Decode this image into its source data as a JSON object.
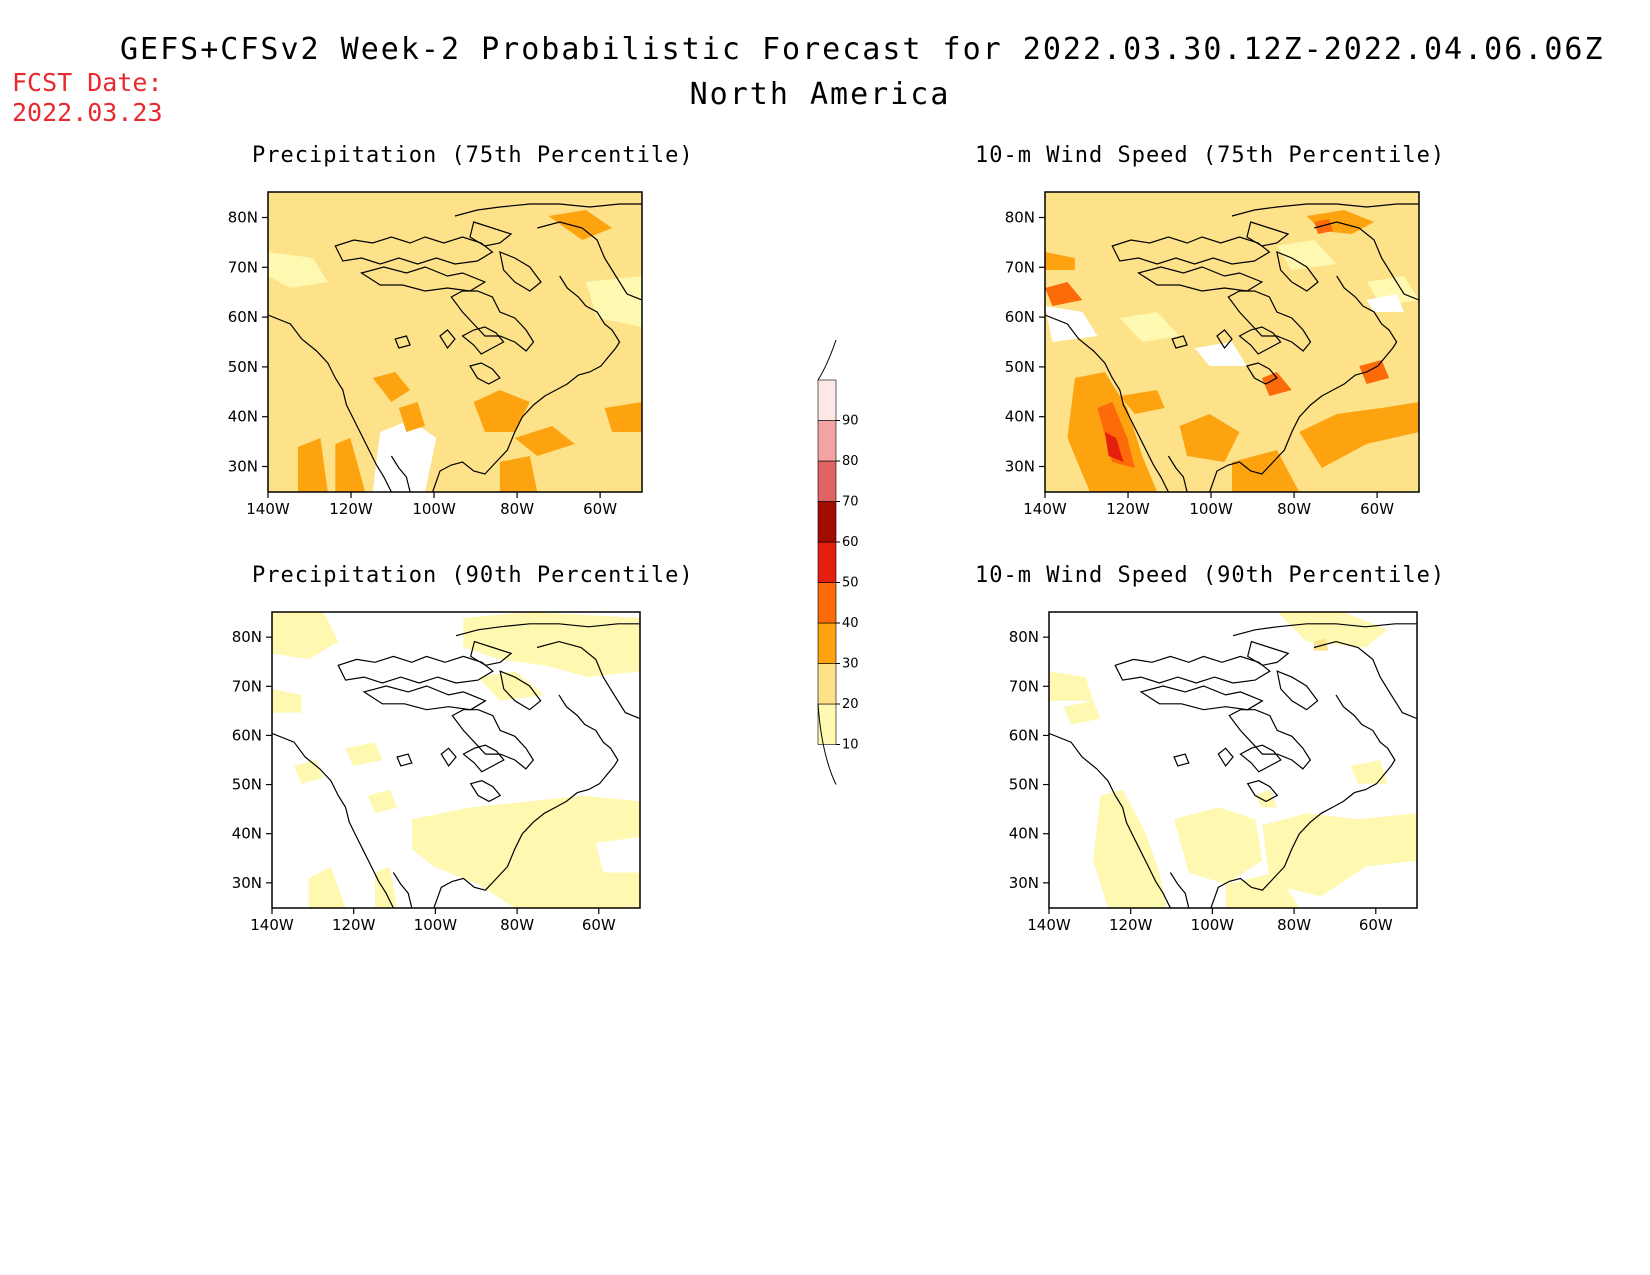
{
  "header": {
    "title_line1": "GEFS+CFSv2 Week-2 Probabilistic Forecast for 2022.03.30.12Z-2022.04.06.06Z",
    "title_line2": "North America",
    "fcst_label": "FCST Date:",
    "fcst_value": "2022.03.23"
  },
  "panels": [
    {
      "id": "precip75",
      "title": "Precipitation (75th Percentile)",
      "level": 1
    },
    {
      "id": "wind75",
      "title": "10-m Wind Speed (75th Percentile)",
      "level": 2
    },
    {
      "id": "precip90",
      "title": "Precipitation (90th Percentile)",
      "level": 0
    },
    {
      "id": "wind90",
      "title": "10-m Wind Speed (90th Percentile)",
      "level": 0
    }
  ],
  "axes": {
    "lat_labels": [
      "80N",
      "70N",
      "60N",
      "50N",
      "40N",
      "30N"
    ],
    "lon_labels": [
      "140W",
      "120W",
      "100W",
      "80W",
      "60W"
    ]
  },
  "colorbar": {
    "levels": [
      "10",
      "20",
      "30",
      "40",
      "50",
      "60",
      "70",
      "80",
      "90"
    ],
    "colors": [
      "#fff8b0",
      "#fde28a",
      "#fda30f",
      "#fd6a09",
      "#e4200c",
      "#a20b00",
      "#e06464",
      "#f4a3a3",
      "#fde8e8"
    ]
  }
}
